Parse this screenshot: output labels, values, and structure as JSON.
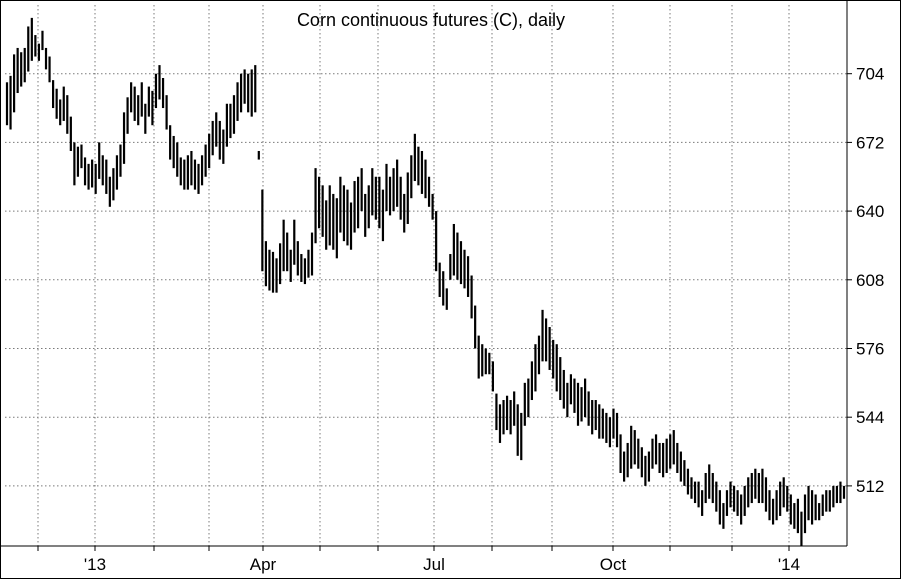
{
  "chart_data": {
    "type": "bar",
    "style": "ohlc-range",
    "title": "Corn continuous futures (C), daily",
    "xlabel": "",
    "ylabel": "",
    "ylim": [
      484,
      736
    ],
    "y_ticks": [
      704,
      672,
      640,
      608,
      576,
      544,
      512
    ],
    "x_ticks": [
      "'13",
      "Apr",
      "Jul",
      "Oct",
      "'14"
    ],
    "grid": true,
    "axis_side": "right",
    "approx_period": [
      "2012-12",
      "2014-01"
    ],
    "series": [
      {
        "values": [
          [
            700,
            680
          ],
          [
            703,
            678
          ],
          [
            713,
            686
          ],
          [
            716,
            695
          ],
          [
            714,
            698
          ],
          [
            716,
            700
          ],
          [
            726,
            705
          ],
          [
            730,
            710
          ],
          [
            722,
            712
          ],
          [
            718,
            710
          ],
          [
            724,
            715
          ],
          [
            716,
            706
          ],
          [
            712,
            700
          ],
          [
            701,
            688
          ],
          [
            697,
            683
          ],
          [
            692,
            680
          ],
          [
            698,
            682
          ],
          [
            694,
            676
          ],
          [
            684,
            668
          ],
          [
            672,
            652
          ],
          [
            670,
            656
          ],
          [
            671,
            660
          ],
          [
            665,
            652
          ],
          [
            662,
            650
          ],
          [
            664,
            651
          ],
          [
            662,
            648
          ],
          [
            672,
            655
          ],
          [
            666,
            652
          ],
          [
            664,
            648
          ],
          [
            656,
            642
          ],
          [
            660,
            645
          ],
          [
            666,
            650
          ],
          [
            671,
            656
          ],
          [
            686,
            662
          ],
          [
            693,
            676
          ],
          [
            700,
            686
          ],
          [
            698,
            682
          ],
          [
            694,
            680
          ],
          [
            700,
            684
          ],
          [
            690,
            676
          ],
          [
            698,
            684
          ],
          [
            696,
            680
          ],
          [
            704,
            688
          ],
          [
            708,
            692
          ],
          [
            702,
            688
          ],
          [
            694,
            678
          ],
          [
            680,
            664
          ],
          [
            675,
            660
          ],
          [
            672,
            656
          ],
          [
            665,
            652
          ],
          [
            664,
            650
          ],
          [
            666,
            650
          ],
          [
            668,
            652
          ],
          [
            664,
            650
          ],
          [
            662,
            648
          ],
          [
            666,
            652
          ],
          [
            671,
            656
          ],
          [
            676,
            660
          ],
          [
            682,
            666
          ],
          [
            686,
            670
          ],
          [
            682,
            664
          ],
          [
            678,
            662
          ],
          [
            690,
            670
          ],
          [
            690,
            674
          ],
          [
            694,
            676
          ],
          [
            700,
            682
          ],
          [
            704,
            686
          ],
          [
            706,
            690
          ],
          [
            704,
            686
          ],
          [
            706,
            684
          ],
          [
            708,
            686
          ],
          [
            668,
            664
          ],
          [
            650,
            612
          ],
          [
            626,
            605
          ],
          [
            622,
            603
          ],
          [
            621,
            602
          ],
          [
            618,
            602
          ],
          [
            625,
            606
          ],
          [
            636,
            612
          ],
          [
            630,
            612
          ],
          [
            622,
            607
          ],
          [
            636,
            615
          ],
          [
            626,
            610
          ],
          [
            620,
            607
          ],
          [
            618,
            606
          ],
          [
            622,
            609
          ],
          [
            630,
            610
          ],
          [
            660,
            625
          ],
          [
            656,
            632
          ],
          [
            652,
            628
          ],
          [
            645,
            622
          ],
          [
            652,
            624
          ],
          [
            648,
            622
          ],
          [
            646,
            618
          ],
          [
            656,
            630
          ],
          [
            652,
            626
          ],
          [
            650,
            624
          ],
          [
            644,
            622
          ],
          [
            654,
            630
          ],
          [
            656,
            632
          ],
          [
            660,
            640
          ],
          [
            648,
            628
          ],
          [
            652,
            632
          ],
          [
            660,
            638
          ],
          [
            656,
            636
          ],
          [
            656,
            632
          ],
          [
            650,
            626
          ],
          [
            662,
            640
          ],
          [
            656,
            638
          ],
          [
            660,
            640
          ],
          [
            664,
            642
          ],
          [
            656,
            636
          ],
          [
            648,
            630
          ],
          [
            658,
            634
          ],
          [
            666,
            646
          ],
          [
            676,
            654
          ],
          [
            670,
            652
          ],
          [
            668,
            648
          ],
          [
            664,
            646
          ],
          [
            656,
            642
          ],
          [
            648,
            636
          ],
          [
            640,
            612
          ],
          [
            616,
            600
          ],
          [
            612,
            596
          ],
          [
            604,
            594
          ],
          [
            620,
            608
          ],
          [
            634,
            610
          ],
          [
            630,
            608
          ],
          [
            626,
            606
          ],
          [
            622,
            604
          ],
          [
            619,
            600
          ],
          [
            610,
            590
          ],
          [
            596,
            576
          ],
          [
            582,
            562
          ],
          [
            578,
            563
          ],
          [
            576,
            564
          ],
          [
            574,
            564
          ],
          [
            570,
            556
          ],
          [
            555,
            538
          ],
          [
            550,
            532
          ],
          [
            552,
            536
          ],
          [
            554,
            538
          ],
          [
            552,
            536
          ],
          [
            556,
            540
          ],
          [
            550,
            526
          ],
          [
            546,
            524
          ],
          [
            560,
            540
          ],
          [
            562,
            544
          ],
          [
            570,
            552
          ],
          [
            578,
            556
          ],
          [
            582,
            564
          ],
          [
            594,
            570
          ],
          [
            590,
            570
          ],
          [
            586,
            566
          ],
          [
            580,
            562
          ],
          [
            578,
            556
          ],
          [
            572,
            552
          ],
          [
            566,
            548
          ],
          [
            560,
            544
          ],
          [
            564,
            550
          ],
          [
            562,
            546
          ],
          [
            560,
            540
          ],
          [
            558,
            542
          ],
          [
            562,
            544
          ],
          [
            556,
            540
          ],
          [
            552,
            536
          ],
          [
            552,
            538
          ],
          [
            550,
            534
          ],
          [
            548,
            534
          ],
          [
            546,
            532
          ],
          [
            544,
            530
          ],
          [
            548,
            534
          ],
          [
            546,
            530
          ],
          [
            536,
            518
          ],
          [
            528,
            514
          ],
          [
            532,
            516
          ],
          [
            540,
            520
          ],
          [
            538,
            522
          ],
          [
            534,
            520
          ],
          [
            530,
            516
          ],
          [
            526,
            512
          ],
          [
            528,
            514
          ],
          [
            534,
            520
          ],
          [
            536,
            522
          ],
          [
            532,
            518
          ],
          [
            532,
            516
          ],
          [
            534,
            518
          ],
          [
            536,
            520
          ],
          [
            538,
            522
          ],
          [
            532,
            518
          ],
          [
            528,
            514
          ],
          [
            524,
            512
          ],
          [
            520,
            508
          ],
          [
            516,
            506
          ],
          [
            514,
            504
          ],
          [
            514,
            502
          ],
          [
            510,
            498
          ],
          [
            518,
            504
          ],
          [
            522,
            506
          ],
          [
            518,
            504
          ],
          [
            514,
            500
          ],
          [
            510,
            494
          ],
          [
            504,
            492
          ],
          [
            510,
            498
          ],
          [
            514,
            502
          ],
          [
            512,
            500
          ],
          [
            510,
            498
          ],
          [
            508,
            494
          ],
          [
            512,
            498
          ],
          [
            516,
            502
          ],
          [
            518,
            504
          ],
          [
            520,
            506
          ],
          [
            518,
            504
          ],
          [
            520,
            504
          ],
          [
            516,
            500
          ],
          [
            510,
            496
          ],
          [
            506,
            494
          ],
          [
            510,
            496
          ],
          [
            514,
            498
          ],
          [
            516,
            502
          ],
          [
            512,
            500
          ],
          [
            508,
            494
          ],
          [
            504,
            492
          ],
          [
            506,
            490
          ],
          [
            500,
            484
          ],
          [
            508,
            490
          ],
          [
            512,
            496
          ],
          [
            510,
            494
          ],
          [
            508,
            496
          ],
          [
            504,
            496
          ],
          [
            508,
            498
          ],
          [
            510,
            500
          ],
          [
            510,
            500
          ],
          [
            512,
            502
          ],
          [
            512,
            504
          ],
          [
            514,
            504
          ],
          [
            512,
            506
          ]
        ]
      }
    ]
  }
}
